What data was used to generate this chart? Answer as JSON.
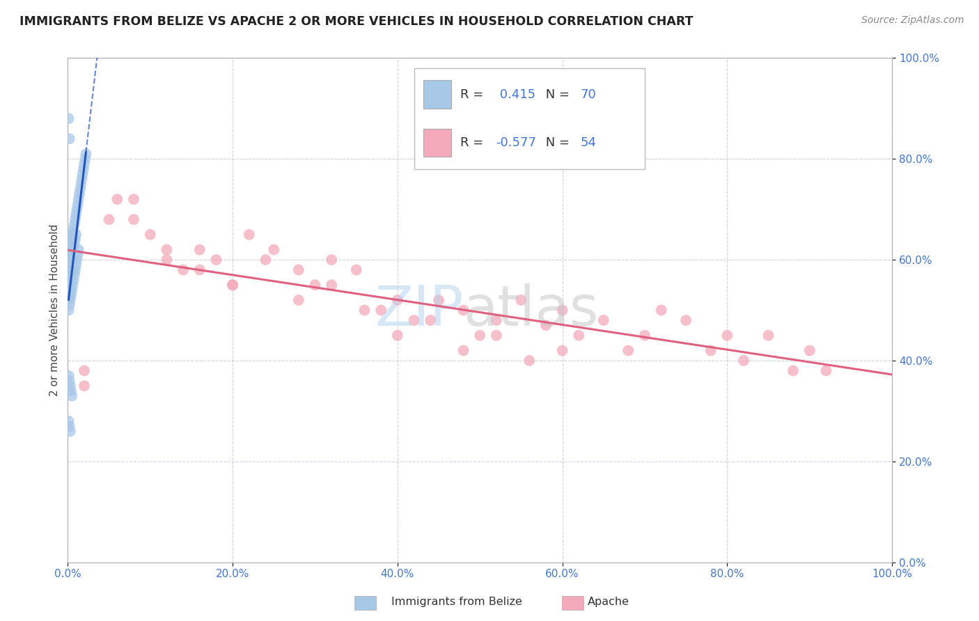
{
  "title": "IMMIGRANTS FROM BELIZE VS APACHE 2 OR MORE VEHICLES IN HOUSEHOLD CORRELATION CHART",
  "source": "Source: ZipAtlas.com",
  "ylabel": "2 or more Vehicles in Household",
  "R1": 0.415,
  "N1": 70,
  "R2": -0.577,
  "N2": 54,
  "color1": "#a8c8e8",
  "color2": "#f4aabb",
  "line_color1": "#2255bb",
  "line_color2": "#e06080",
  "xlim": [
    0.0,
    1.0
  ],
  "ylim": [
    0.0,
    1.0
  ],
  "xticks": [
    0.0,
    0.2,
    0.4,
    0.6,
    0.8,
    1.0
  ],
  "yticks": [
    0.0,
    0.2,
    0.4,
    0.6,
    0.8,
    1.0
  ],
  "xticklabels": [
    "0.0%",
    "20.0%",
    "40.0%",
    "60.0%",
    "80.0%",
    "100.0%"
  ],
  "yticklabels": [
    "0.0%",
    "20.0%",
    "40.0%",
    "60.0%",
    "80.0%",
    "100.0%"
  ],
  "legend_label1": "Immigrants from Belize",
  "legend_label2": "Apache",
  "blue_x": [
    0.001,
    0.001,
    0.001,
    0.001,
    0.002,
    0.002,
    0.002,
    0.002,
    0.002,
    0.003,
    0.003,
    0.003,
    0.003,
    0.004,
    0.004,
    0.004,
    0.004,
    0.005,
    0.005,
    0.005,
    0.006,
    0.006,
    0.006,
    0.007,
    0.007,
    0.007,
    0.008,
    0.008,
    0.009,
    0.009,
    0.01,
    0.01,
    0.011,
    0.012,
    0.013,
    0.014,
    0.015,
    0.016,
    0.017,
    0.018,
    0.019,
    0.02,
    0.021,
    0.022,
    0.001,
    0.001,
    0.002,
    0.002,
    0.003,
    0.003,
    0.004,
    0.005,
    0.006,
    0.007,
    0.008,
    0.009,
    0.01,
    0.011,
    0.012,
    0.013,
    0.001,
    0.002,
    0.003,
    0.004,
    0.005,
    0.001,
    0.002,
    0.003,
    0.001,
    0.002
  ],
  "blue_y": [
    0.6,
    0.58,
    0.62,
    0.55,
    0.63,
    0.61,
    0.59,
    0.57,
    0.64,
    0.62,
    0.6,
    0.58,
    0.65,
    0.63,
    0.61,
    0.59,
    0.56,
    0.64,
    0.62,
    0.6,
    0.65,
    0.63,
    0.58,
    0.66,
    0.64,
    0.6,
    0.67,
    0.63,
    0.68,
    0.64,
    0.69,
    0.65,
    0.7,
    0.71,
    0.72,
    0.73,
    0.74,
    0.75,
    0.76,
    0.77,
    0.78,
    0.79,
    0.8,
    0.81,
    0.5,
    0.52,
    0.51,
    0.53,
    0.52,
    0.54,
    0.53,
    0.54,
    0.55,
    0.56,
    0.57,
    0.58,
    0.59,
    0.6,
    0.61,
    0.62,
    0.37,
    0.36,
    0.35,
    0.34,
    0.33,
    0.28,
    0.27,
    0.26,
    0.88,
    0.84
  ],
  "pink_x": [
    0.02,
    0.06,
    0.08,
    0.1,
    0.12,
    0.14,
    0.16,
    0.18,
    0.2,
    0.22,
    0.25,
    0.28,
    0.3,
    0.32,
    0.35,
    0.38,
    0.4,
    0.42,
    0.45,
    0.48,
    0.5,
    0.52,
    0.55,
    0.58,
    0.6,
    0.62,
    0.65,
    0.68,
    0.7,
    0.72,
    0.75,
    0.78,
    0.8,
    0.82,
    0.85,
    0.88,
    0.9,
    0.92,
    0.02,
    0.05,
    0.08,
    0.12,
    0.16,
    0.2,
    0.24,
    0.28,
    0.32,
    0.36,
    0.4,
    0.44,
    0.48,
    0.52,
    0.56,
    0.6
  ],
  "pink_y": [
    0.38,
    0.72,
    0.68,
    0.65,
    0.6,
    0.58,
    0.62,
    0.6,
    0.55,
    0.65,
    0.62,
    0.58,
    0.55,
    0.6,
    0.58,
    0.5,
    0.52,
    0.48,
    0.52,
    0.5,
    0.45,
    0.48,
    0.52,
    0.47,
    0.5,
    0.45,
    0.48,
    0.42,
    0.45,
    0.5,
    0.48,
    0.42,
    0.45,
    0.4,
    0.45,
    0.38,
    0.42,
    0.38,
    0.35,
    0.68,
    0.72,
    0.62,
    0.58,
    0.55,
    0.6,
    0.52,
    0.55,
    0.5,
    0.45,
    0.48,
    0.42,
    0.45,
    0.4,
    0.42
  ]
}
